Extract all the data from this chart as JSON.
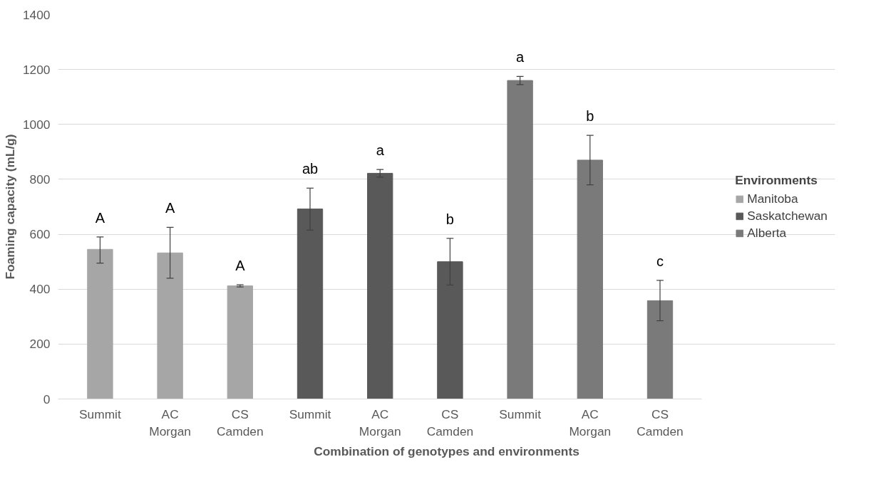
{
  "chart_data": {
    "type": "bar",
    "xlabel": "Combination of genotypes and environments",
    "ylabel": "Foaming capacity (mL/g)",
    "legend_title": "Environments",
    "categories": [
      "Summit",
      "AC Morgan",
      "CS Camden",
      "Summit",
      "AC Morgan",
      "CS Camden",
      "Summit",
      "AC Morgan",
      "CS Camden"
    ],
    "series": [
      {
        "name": "Manitoba",
        "color": "#a6a6a6",
        "values": [
          545,
          532,
          412,
          null,
          null,
          null,
          null,
          null,
          null
        ],
        "errors": [
          [
            495,
            590
          ],
          [
            440,
            625
          ],
          [
            408,
            416
          ],
          null,
          null,
          null,
          null,
          null,
          null
        ]
      },
      {
        "name": "Saskatchewan",
        "color": "#595959",
        "values": [
          null,
          null,
          null,
          692,
          822,
          500,
          null,
          null,
          null
        ],
        "errors": [
          null,
          null,
          null,
          [
            615,
            768
          ],
          [
            808,
            836
          ],
          [
            415,
            585
          ],
          null,
          null,
          null
        ]
      },
      {
        "name": "Alberta",
        "color": "#7a7a7a",
        "values": [
          null,
          null,
          null,
          null,
          null,
          null,
          1160,
          870,
          358
        ],
        "errors": [
          null,
          null,
          null,
          null,
          null,
          null,
          [
            1145,
            1175
          ],
          [
            780,
            960
          ],
          [
            285,
            432
          ]
        ]
      }
    ],
    "annotations": [
      "A",
      "A",
      "A",
      "ab",
      "a",
      "b",
      "a",
      "b",
      "c"
    ],
    "ylim": [
      0,
      1400
    ],
    "yticks": [
      0,
      200,
      400,
      600,
      800,
      1000,
      1200,
      1400
    ],
    "grid": "y",
    "legend": "right"
  }
}
